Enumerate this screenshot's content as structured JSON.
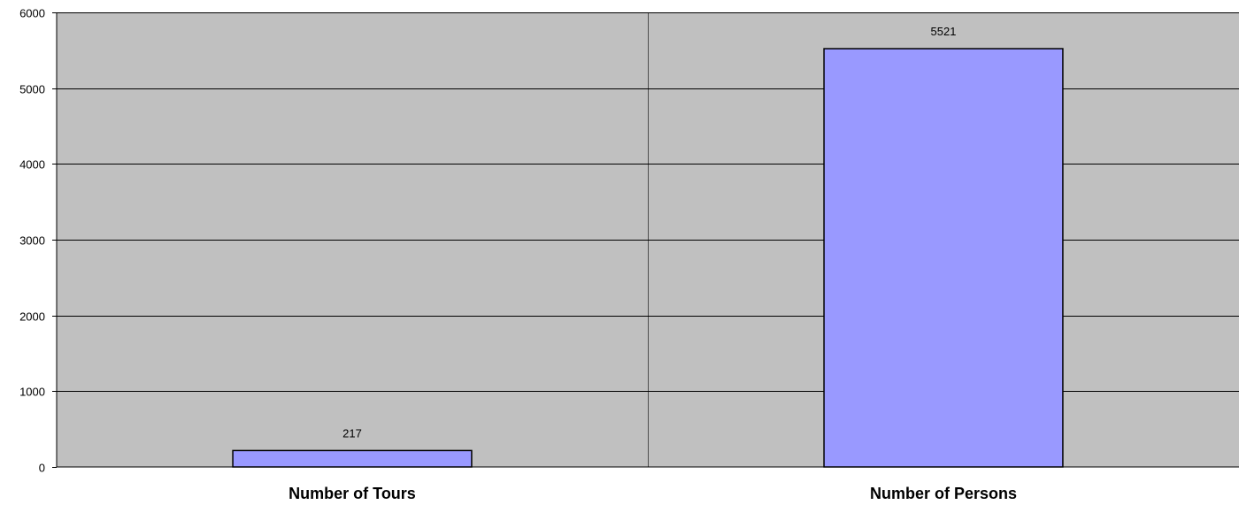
{
  "chart_data": {
    "type": "bar",
    "title": "",
    "xlabel": "",
    "ylabel": "",
    "categories": [
      "Number of Tours",
      "Number of Persons"
    ],
    "values": [
      217,
      5521
    ],
    "data_labels": [
      "217",
      "5521"
    ],
    "ylim": [
      0,
      6000
    ],
    "yticks": [
      0,
      1000,
      2000,
      3000,
      4000,
      5000,
      6000
    ],
    "ytick_labels": [
      "0",
      "1000",
      "2000",
      "3000",
      "4000",
      "5000",
      "6000"
    ],
    "grid": true,
    "legend": "none",
    "colors": {
      "plot_background": "#c0c0c0",
      "bar_fill": "#9999ff",
      "bar_stroke": "#000000",
      "gridline": "#000000"
    }
  }
}
